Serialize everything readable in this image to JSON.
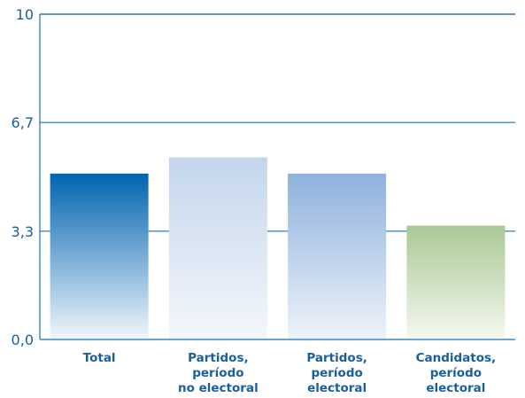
{
  "chart_data": {
    "type": "bar",
    "categories": [
      [
        "Total"
      ],
      [
        "Partidos,",
        "período",
        "no electoral"
      ],
      [
        "Partidos,",
        "período",
        "electoral"
      ],
      [
        "Candidatos,",
        "período",
        "electoral"
      ]
    ],
    "values": [
      5.1,
      5.6,
      5.1,
      3.5
    ],
    "y_ticks": [
      "0,0",
      "3,3",
      "6,7",
      "10"
    ],
    "y_tick_values": [
      0,
      3.33,
      6.67,
      10
    ],
    "ylim": [
      0,
      10
    ],
    "grid": true,
    "colors": {
      "axis": "#1b6fb5",
      "text": "#1b5e9e",
      "bar_fills": [
        {
          "top": "#0064b0",
          "bottom": "#f2f6fb"
        },
        {
          "top": "#c4d6ec",
          "bottom": "#f4f7fc"
        },
        {
          "top": "#8fb1dc",
          "bottom": "#eef3fa"
        },
        {
          "top": "#a9c894",
          "bottom": "#f5f9f0"
        }
      ]
    }
  }
}
